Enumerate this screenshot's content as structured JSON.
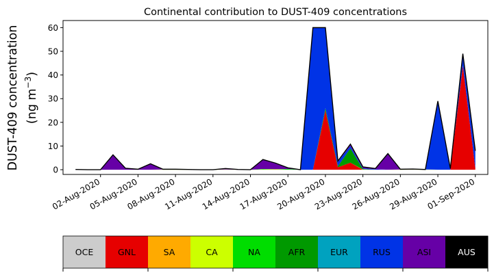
{
  "chart_data": {
    "type": "area",
    "title": "Continental contribution to DUST-409 concentrations",
    "ylabel_line1": "DUST-409 concentration",
    "ylabel_line2": "(ng m",
    "ylabel_sup": "−3",
    "ylabel_close": ")",
    "ylim": [
      -2,
      63
    ],
    "yticks": [
      "0",
      "10",
      "20",
      "30",
      "40",
      "50",
      "60"
    ],
    "xlim": [
      "2020-07-30",
      "2020-09-02"
    ],
    "xticks": [
      "02-Aug-2020",
      "05-Aug-2020",
      "08-Aug-2020",
      "11-Aug-2020",
      "14-Aug-2020",
      "17-Aug-2020",
      "20-Aug-2020",
      "23-Aug-2020",
      "26-Aug-2020",
      "29-Aug-2020",
      "01-Sep-2020"
    ],
    "grid": false,
    "legend": "bottom colorbar",
    "x": [
      "2020-07-31",
      "2020-08-01",
      "2020-08-02",
      "2020-08-03",
      "2020-08-04",
      "2020-08-05",
      "2020-08-06",
      "2020-08-07",
      "2020-08-08",
      "2020-08-09",
      "2020-08-10",
      "2020-08-11",
      "2020-08-12",
      "2020-08-13",
      "2020-08-14",
      "2020-08-15",
      "2020-08-16",
      "2020-08-17",
      "2020-08-18",
      "2020-08-19",
      "2020-08-20",
      "2020-08-21",
      "2020-08-22",
      "2020-08-23",
      "2020-08-24",
      "2020-08-25",
      "2020-08-26",
      "2020-08-27",
      "2020-08-28",
      "2020-08-29",
      "2020-08-30",
      "2020-08-31",
      "2020-09-01"
    ],
    "series": [
      {
        "name": "OCE",
        "color": "#cccccc",
        "values": [
          0,
          0,
          0,
          0,
          0,
          0,
          0,
          0,
          0,
          0,
          0,
          0,
          0,
          0,
          0,
          0,
          0,
          0,
          0,
          0,
          0,
          0,
          0,
          0,
          0,
          0,
          0,
          0,
          0,
          0,
          0,
          0,
          0
        ]
      },
      {
        "name": "GNL",
        "color": "#e60000",
        "values": [
          0,
          0,
          0,
          0,
          0,
          0,
          0,
          0,
          0,
          0,
          0,
          0,
          0,
          0,
          0,
          0,
          0,
          0,
          0,
          0,
          25,
          1,
          3,
          0,
          0,
          0,
          0,
          0,
          0,
          0,
          0,
          44,
          0.5
        ]
      },
      {
        "name": "SA",
        "color": "#ffaa00",
        "values": [
          0,
          0,
          0,
          0,
          0,
          0,
          0,
          0,
          0,
          0,
          0,
          0,
          0,
          0,
          0,
          0,
          0,
          0,
          0,
          0,
          0,
          0,
          0,
          0,
          0,
          0,
          0,
          0,
          0,
          0,
          0,
          0,
          0
        ]
      },
      {
        "name": "CA",
        "color": "#ccff00",
        "values": [
          0,
          0,
          0,
          0,
          0,
          0,
          0,
          0.1,
          0.2,
          0.1,
          0,
          0,
          0.1,
          0,
          0,
          0.1,
          0.2,
          0,
          0,
          0,
          0,
          0,
          0,
          0.1,
          0,
          0,
          0.1,
          0.1,
          0.1,
          0,
          0,
          0,
          0
        ]
      },
      {
        "name": "NA",
        "color": "#00dd00",
        "values": [
          0,
          0,
          0,
          0,
          0,
          0,
          0,
          0,
          0,
          0,
          0,
          0,
          0,
          0,
          0,
          0.2,
          0,
          0.3,
          0,
          0,
          0,
          0,
          0,
          0,
          0,
          0,
          0,
          0,
          0,
          0,
          0,
          0,
          0
        ]
      },
      {
        "name": "AFR",
        "color": "#009900",
        "values": [
          0,
          0,
          0,
          0,
          0,
          0,
          0,
          0,
          0,
          0,
          0,
          0,
          0,
          0,
          0,
          0,
          0,
          0,
          0,
          0,
          1,
          0.5,
          6,
          0.2,
          0,
          0,
          0,
          0,
          0,
          0,
          0,
          0,
          0
        ]
      },
      {
        "name": "EUR",
        "color": "#00a2bf",
        "values": [
          0,
          0,
          0,
          0,
          0,
          0,
          0,
          0,
          0,
          0,
          0,
          0,
          0,
          0,
          0,
          0,
          0,
          0,
          0,
          0,
          0,
          0,
          0,
          0,
          0,
          0,
          0,
          0,
          0,
          0,
          0,
          0,
          0
        ]
      },
      {
        "name": "RUS",
        "color": "#0033e6",
        "values": [
          0,
          0,
          0,
          0,
          0,
          0,
          0,
          0,
          0,
          0,
          0,
          0,
          0,
          0,
          0,
          0,
          0,
          0,
          0,
          60,
          34,
          2,
          1,
          0.3,
          0.2,
          0,
          0,
          0,
          0,
          29,
          0.5,
          5,
          7.5
        ]
      },
      {
        "name": "ASI",
        "color": "#6600a6",
        "values": [
          0.1,
          0,
          0,
          6.3,
          0.6,
          0.2,
          2.5,
          0.1,
          0,
          0,
          0,
          0,
          0.4,
          0.1,
          0,
          4,
          2.6,
          0.5,
          0,
          0,
          0,
          0.2,
          0.8,
          0.6,
          0.3,
          6.8,
          0.1,
          0.2,
          0,
          0,
          0,
          0,
          0
        ]
      },
      {
        "name": "AUS",
        "color": "#000000",
        "values": [
          0,
          0,
          0,
          0,
          0,
          0,
          0,
          0,
          0,
          0,
          0,
          0,
          0,
          0,
          0,
          0,
          0,
          0,
          0,
          0,
          0,
          0,
          0,
          0,
          0,
          0,
          0,
          0,
          0,
          0,
          0,
          0,
          0
        ]
      }
    ]
  }
}
